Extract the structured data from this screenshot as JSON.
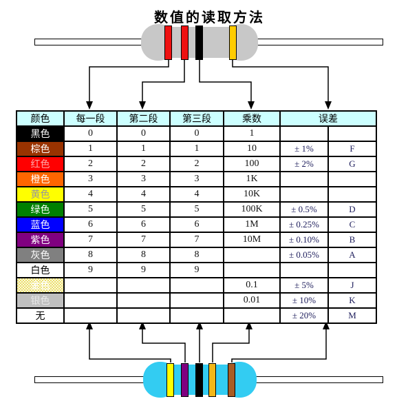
{
  "title": "数值的读取方法",
  "colors": {
    "header_bg": "#CCFFFF",
    "grid": "#000000",
    "tolerance_text": "#20205E",
    "page_bg": "#FFFFFF"
  },
  "table": {
    "headers": [
      "颜色",
      "每一段",
      "第二段",
      "第三段",
      "乘数",
      "误差"
    ],
    "rows": [
      {
        "name": "黑色",
        "bg": "#000000",
        "fg": "#FFFFFF",
        "d1": "0",
        "d2": "0",
        "d3": "0",
        "mult": "1",
        "tol": "",
        "code": ""
      },
      {
        "name": "棕色",
        "bg": "#993300",
        "fg": "#FFFFFF",
        "d1": "1",
        "d2": "1",
        "d3": "1",
        "mult": "10",
        "tol": "± 1%",
        "code": "F"
      },
      {
        "name": "红色",
        "bg": "#FF0000",
        "fg": "#FFAAAA",
        "d1": "2",
        "d2": "2",
        "d3": "2",
        "mult": "100",
        "tol": "± 2%",
        "code": "G"
      },
      {
        "name": "橙色",
        "bg": "#FF6600",
        "fg": "#FFFFFF",
        "d1": "3",
        "d2": "3",
        "d3": "3",
        "mult": "1K",
        "tol": "",
        "code": ""
      },
      {
        "name": "黄色",
        "bg": "#FFFF00",
        "fg": "#999999",
        "d1": "4",
        "d2": "4",
        "d3": "4",
        "mult": "10K",
        "tol": "",
        "code": ""
      },
      {
        "name": "绿色",
        "bg": "#008000",
        "fg": "#FFFFFF",
        "d1": "5",
        "d2": "5",
        "d3": "5",
        "mult": "100K",
        "tol": "± 0.5%",
        "code": "D"
      },
      {
        "name": "蓝色",
        "bg": "#0000FF",
        "fg": "#FFFFFF",
        "d1": "6",
        "d2": "6",
        "d3": "6",
        "mult": "1M",
        "tol": "± 0.25%",
        "code": "C"
      },
      {
        "name": "紫色",
        "bg": "#800080",
        "fg": "#FFFFFF",
        "d1": "7",
        "d2": "7",
        "d3": "7",
        "mult": "10M",
        "tol": "± 0.10%",
        "code": "B"
      },
      {
        "name": "灰色",
        "bg": "#808080",
        "fg": "#FFFFFF",
        "d1": "8",
        "d2": "8",
        "d3": "8",
        "mult": "",
        "tol": "± 0.05%",
        "code": "A"
      },
      {
        "name": "白色",
        "bg": "#FFFFFF",
        "fg": "#000000",
        "d1": "9",
        "d2": "9",
        "d3": "9",
        "mult": "",
        "tol": "",
        "code": ""
      },
      {
        "name": "金色",
        "bg": "checker-gold",
        "fg": "#FFFFFF",
        "d1": "",
        "d2": "",
        "d3": "",
        "mult": "0.1",
        "tol": "± 5%",
        "code": "J"
      },
      {
        "name": "银色",
        "bg": "#C0C0C0",
        "fg": "#E9E9E9",
        "d1": "",
        "d2": "",
        "d3": "",
        "mult": "0.01",
        "tol": "± 10%",
        "code": "K"
      },
      {
        "name": "无",
        "bg": "#FFFFFF",
        "fg": "#000000",
        "d1": "",
        "d2": "",
        "d3": "",
        "mult": "",
        "tol": "± 20%",
        "code": "M"
      }
    ]
  },
  "top_resistor": {
    "body_color": "#C8C8C8",
    "bands": [
      {
        "name": "red",
        "hex": "#EE1111"
      },
      {
        "name": "red",
        "hex": "#EE1111"
      },
      {
        "name": "black",
        "hex": "#000000"
      },
      {
        "name": "gold",
        "hex": "#FFCC00"
      }
    ]
  },
  "bottom_resistor": {
    "body_color": "#33CCF2",
    "bands": [
      {
        "name": "yellow",
        "hex": "#FFFF00"
      },
      {
        "name": "purple",
        "hex": "#800080"
      },
      {
        "name": "black",
        "hex": "#000000"
      },
      {
        "name": "gold",
        "hex": "#F2B718"
      },
      {
        "name": "brown",
        "hex": "#A85C24"
      }
    ]
  }
}
